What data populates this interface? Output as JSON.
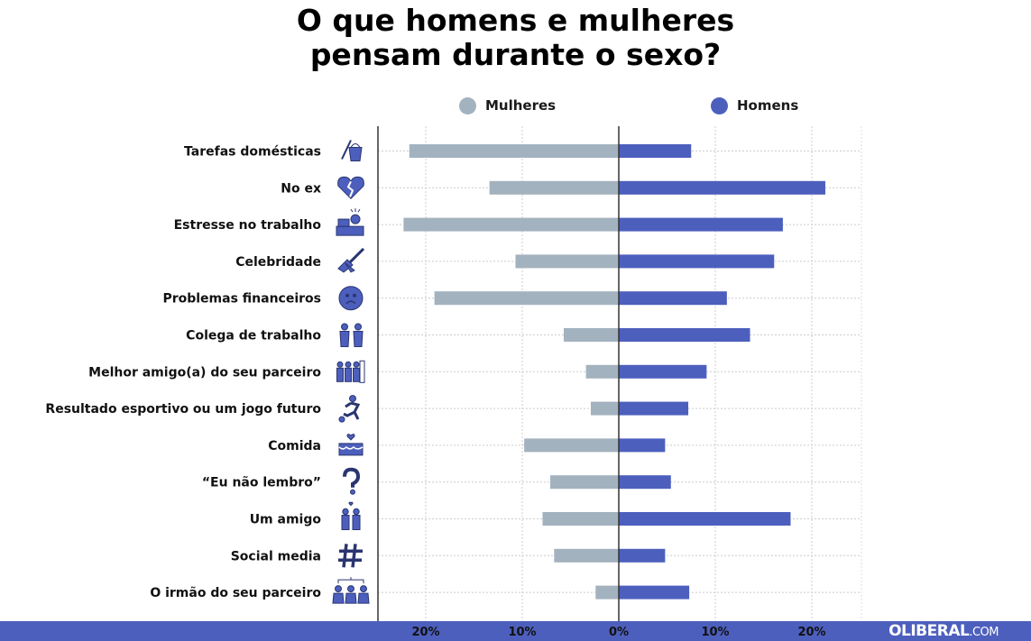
{
  "title_line1": "O que homens e mulheres",
  "title_line2": "pensam durante o sexo?",
  "brand": {
    "name": "OLIBERAL",
    "suffix": ".COM"
  },
  "colors": {
    "mulheres": "#a3b2bf",
    "homens": "#4d5fbd",
    "brand_bar": "#4d5fbd"
  },
  "chart_data": {
    "type": "bar",
    "orientation": "horizontal-diverging",
    "title": "O que homens e mulheres pensam durante o sexo?",
    "legend": [
      {
        "name": "Mulheres",
        "color": "#a3b2bf"
      },
      {
        "name": "Homens",
        "color": "#4d5fbd"
      }
    ],
    "legend_position": "top",
    "categories": [
      "Tarefas domésticas",
      "No ex",
      "Estresse no trabalho",
      "Celebridade",
      "Problemas financeiros",
      "Colega de trabalho",
      "Melhor amigo(a) do seu parceiro",
      "Resultado esportivo ou um jogo futuro",
      "Comida",
      "“Eu não lembro”",
      "Um amigo",
      "Social media",
      "O irmão do seu parceiro"
    ],
    "icons": [
      "mop-bucket-icon",
      "broken-heart-icon",
      "office-stress-icon",
      "guitar-icon",
      "sad-face-icon",
      "coworkers-icon",
      "friends-icon",
      "soccer-player-icon",
      "cake-icon",
      "question-mark-icon",
      "two-friends-icon",
      "hashtag-icon",
      "siblings-icon"
    ],
    "series": [
      {
        "name": "Mulheres",
        "values": [
          21.7,
          13.4,
          22.3,
          10.7,
          19.1,
          5.7,
          3.4,
          2.9,
          9.8,
          7.1,
          7.9,
          6.7,
          2.4
        ]
      },
      {
        "name": "Homens",
        "values": [
          7.5,
          21.4,
          17.0,
          16.1,
          11.2,
          13.6,
          9.1,
          7.2,
          4.8,
          5.4,
          17.8,
          4.8,
          7.3
        ]
      }
    ],
    "x_ticks": [
      "20%",
      "10%",
      "0%",
      "10%",
      "20%"
    ],
    "xlim": [
      -25,
      25
    ],
    "grid": true
  }
}
